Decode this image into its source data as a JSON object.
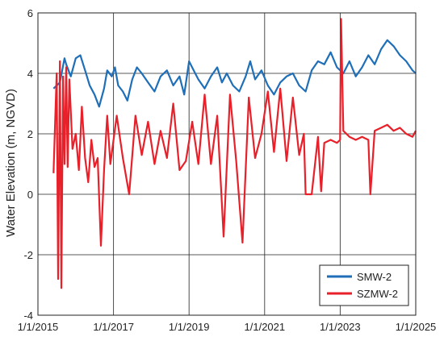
{
  "chart_data": {
    "type": "line",
    "title": "",
    "xlabel": "",
    "ylabel": "Water Elevation (m, NGVD)",
    "xlim": [
      "1/1/2015",
      "1/1/2025"
    ],
    "ylim": [
      -4,
      6
    ],
    "x_ticks": [
      "1/1/2015",
      "1/1/2017",
      "1/1/2019",
      "1/1/2021",
      "1/1/2023",
      "1/1/2025"
    ],
    "y_ticks": [
      -4,
      -2,
      0,
      2,
      4,
      6
    ],
    "grid": true,
    "legend_position": "bottom-right",
    "series": [
      {
        "name": "SMW-2",
        "color": "#1f6fb8",
        "x": [
          "6/1/2015",
          "8/1/2015",
          "9/15/2015",
          "10/1/2015",
          "11/15/2015",
          "1/1/2016",
          "2/15/2016",
          "4/1/2016",
          "5/15/2016",
          "7/1/2016",
          "8/15/2016",
          "10/1/2016",
          "11/1/2016",
          "12/15/2016",
          "1/15/2017",
          "2/15/2017",
          "4/1/2017",
          "5/15/2017",
          "7/1/2017",
          "8/15/2017",
          "10/1/2017",
          "12/1/2017",
          "2/1/2018",
          "4/1/2018",
          "6/1/2018",
          "8/1/2018",
          "10/1/2018",
          "11/15/2018",
          "1/1/2019",
          "2/15/2019",
          "4/1/2019",
          "6/1/2019",
          "8/1/2019",
          "10/1/2019",
          "11/15/2019",
          "1/1/2020",
          "3/1/2020",
          "5/1/2020",
          "7/1/2020",
          "8/15/2020",
          "10/1/2020",
          "12/1/2020",
          "2/1/2021",
          "4/1/2021",
          "6/1/2021",
          "8/1/2021",
          "10/1/2021",
          "12/1/2021",
          "2/1/2022",
          "4/1/2022",
          "6/1/2022",
          "8/1/2022",
          "10/1/2022",
          "12/1/2022",
          "2/1/2023",
          "4/1/2023",
          "6/1/2023",
          "8/1/2023",
          "10/1/2023",
          "12/1/2023",
          "2/1/2024",
          "4/1/2024",
          "6/1/2024",
          "8/1/2024",
          "10/1/2024",
          "12/1/2024",
          "1/1/2025"
        ],
        "y": [
          3.5,
          3.7,
          4.5,
          4.3,
          3.9,
          4.5,
          4.6,
          4.1,
          3.6,
          3.3,
          2.9,
          3.5,
          4.1,
          3.9,
          4.2,
          3.6,
          3.4,
          3.1,
          3.8,
          4.2,
          4.0,
          3.7,
          3.4,
          3.9,
          4.1,
          3.6,
          3.9,
          3.3,
          4.4,
          4.1,
          3.8,
          3.5,
          3.9,
          4.2,
          3.7,
          4.0,
          3.6,
          3.4,
          3.9,
          4.4,
          3.8,
          4.1,
          3.6,
          3.3,
          3.7,
          3.9,
          4.0,
          3.6,
          3.4,
          4.1,
          4.4,
          4.3,
          4.7,
          4.2,
          4.0,
          4.4,
          3.9,
          4.2,
          4.6,
          4.3,
          4.8,
          5.1,
          4.9,
          4.6,
          4.4,
          4.1,
          4.0
        ]
      },
      {
        "name": "SZMW-2",
        "color": "#e8202a",
        "x": [
          "6/1/2015",
          "7/1/2015",
          "7/15/2015",
          "8/1/2015",
          "8/15/2015",
          "9/1/2015",
          "9/15/2015",
          "10/1/2015",
          "10/15/2015",
          "11/1/2015",
          "12/1/2015",
          "1/1/2016",
          "2/1/2016",
          "3/1/2016",
          "4/1/2016",
          "5/1/2016",
          "6/1/2016",
          "7/1/2016",
          "8/1/2016",
          "9/1/2016",
          "10/1/2016",
          "11/1/2016",
          "12/1/2016",
          "2/1/2017",
          "4/1/2017",
          "6/1/2017",
          "8/1/2017",
          "10/1/2017",
          "12/1/2017",
          "2/1/2018",
          "4/1/2018",
          "6/1/2018",
          "8/1/2018",
          "10/1/2018",
          "12/1/2018",
          "2/1/2019",
          "4/1/2019",
          "6/1/2019",
          "8/1/2019",
          "10/1/2019",
          "12/1/2019",
          "2/1/2020",
          "4/1/2020",
          "6/1/2020",
          "8/1/2020",
          "10/1/2020",
          "12/1/2020",
          "2/1/2021",
          "4/1/2021",
          "6/1/2021",
          "8/1/2021",
          "10/1/2021",
          "12/1/2021",
          "1/15/2022",
          "2/1/2022",
          "4/1/2022",
          "6/1/2022",
          "7/1/2022",
          "8/1/2022",
          "10/1/2022",
          "12/1/2022",
          "1/1/2023",
          "1/10/2023",
          "2/1/2023",
          "4/1/2023",
          "6/1/2023",
          "8/1/2023",
          "10/1/2023",
          "10/20/2023",
          "12/1/2023",
          "2/1/2024",
          "4/1/2024",
          "6/1/2024",
          "8/1/2024",
          "10/1/2024",
          "12/1/2024",
          "1/1/2025"
        ],
        "y": [
          0.7,
          4.0,
          -2.8,
          4.4,
          -3.1,
          3.9,
          1.0,
          4.2,
          0.9,
          3.8,
          1.5,
          2.0,
          0.8,
          2.9,
          1.2,
          0.4,
          1.8,
          0.9,
          1.2,
          -1.7,
          0.8,
          2.6,
          1.0,
          2.6,
          1.2,
          0.0,
          2.6,
          1.3,
          2.4,
          1.0,
          2.1,
          1.2,
          3.0,
          0.8,
          1.1,
          2.4,
          1.0,
          3.3,
          1.0,
          2.6,
          -1.4,
          3.3,
          1.1,
          -1.6,
          3.2,
          1.2,
          2.0,
          3.4,
          1.4,
          3.5,
          1.1,
          3.2,
          1.3,
          2.0,
          0.0,
          0.0,
          1.9,
          0.1,
          1.7,
          1.8,
          1.7,
          1.8,
          5.8,
          2.1,
          1.9,
          1.8,
          1.9,
          1.8,
          0.0,
          2.1,
          2.2,
          2.3,
          2.1,
          2.2,
          2.0,
          1.9,
          2.1
        ]
      }
    ]
  }
}
